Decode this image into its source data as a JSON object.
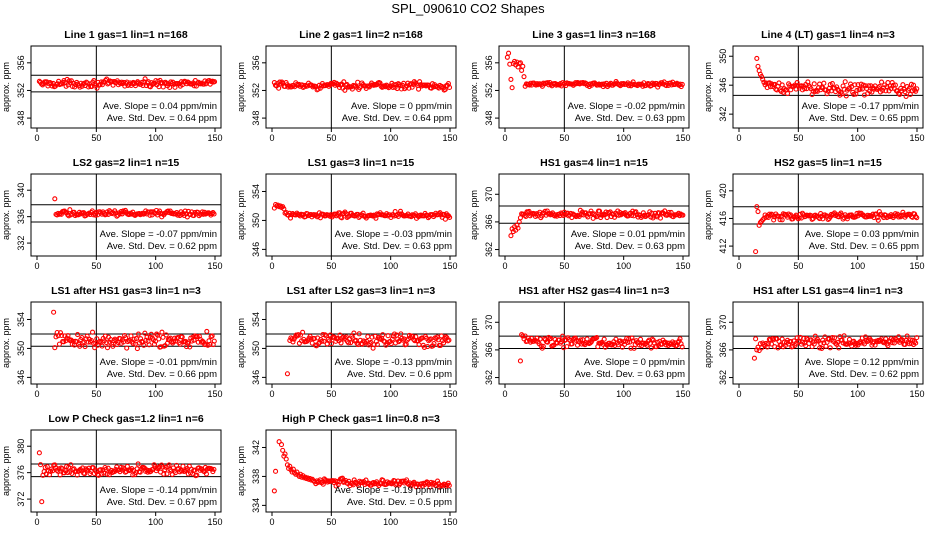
{
  "page_title": "SPL_090610  CO2 Shapes",
  "colors": {
    "points": "#ff0000",
    "axes": "#000000",
    "background": "#ffffff"
  },
  "chart_data": [
    {
      "type": "scatter",
      "title": "Line 1 gas=1 lin=1 n=168",
      "ylabel": "approx. ppm",
      "xlim": [
        0,
        150
      ],
      "ylim": [
        347,
        358
      ],
      "x_ticks": [
        0,
        50,
        100,
        150
      ],
      "y_ticks": [
        348,
        352,
        356
      ],
      "hlines": [
        351.8,
        354.2
      ],
      "vline": 50,
      "annotation": {
        "slope": "Ave. Slope =  0.04  ppm/min",
        "sd": "Ave. Std. Dev. =  0.64  ppm"
      },
      "series": {
        "name": "CO2",
        "start_x": 2,
        "end_x": 150,
        "base_y": 353.0,
        "noise": 0.25,
        "slope_per_x": 0.0,
        "early": []
      }
    },
    {
      "type": "scatter",
      "title": "Line 2 gas=1 lin=2 n=168",
      "ylabel": "approx. ppm",
      "xlim": [
        0,
        150
      ],
      "ylim": [
        347,
        358
      ],
      "x_ticks": [
        0,
        50,
        100,
        150
      ],
      "y_ticks": [
        348,
        352,
        356
      ],
      "hlines": [],
      "vline": 50,
      "annotation": {
        "slope": "Ave. Slope =  0  ppm/min",
        "sd": "Ave. Std. Dev. =  0.64  ppm"
      },
      "series": {
        "name": "CO2",
        "start_x": 2,
        "end_x": 150,
        "base_y": 352.7,
        "noise": 0.25,
        "slope_per_x": 0.0,
        "early": []
      }
    },
    {
      "type": "scatter",
      "title": "Line 3 gas=1 lin=3 n=168",
      "ylabel": "approx. ppm",
      "xlim": [
        0,
        150
      ],
      "ylim": [
        347,
        358
      ],
      "x_ticks": [
        0,
        50,
        100,
        150
      ],
      "y_ticks": [
        348,
        352,
        356
      ],
      "hlines": [],
      "vline": 50,
      "annotation": {
        "slope": "Ave. Slope =  -0.02  ppm/min",
        "sd": "Ave. Std. Dev. =  0.63  ppm"
      },
      "series": {
        "name": "CO2",
        "start_x": 18,
        "end_x": 150,
        "base_y": 352.9,
        "noise": 0.15,
        "slope_per_x": 0.0,
        "early": [
          [
            2,
            356.8
          ],
          [
            3,
            357.4
          ],
          [
            4,
            355.8
          ],
          [
            5,
            353.6
          ],
          [
            6,
            352.4
          ],
          [
            7,
            355.9
          ],
          [
            8,
            356.2
          ],
          [
            9,
            355.7
          ],
          [
            10,
            356.1
          ],
          [
            11,
            355.4
          ],
          [
            12,
            355.9
          ],
          [
            13,
            356.0
          ],
          [
            14,
            354.9
          ],
          [
            15,
            355.5
          ],
          [
            16,
            354.0
          ],
          [
            17,
            352.6
          ]
        ]
      }
    },
    {
      "type": "scatter",
      "title": "Line 4 (LT) gas=1 lin=4 n=3",
      "ylabel": "approx. ppm",
      "xlim": [
        0,
        150
      ],
      "ylim": [
        340.5,
        351
      ],
      "x_ticks": [
        0,
        50,
        100,
        150
      ],
      "y_ticks": [
        342,
        346,
        350
      ],
      "hlines": [
        344.6,
        347.1
      ],
      "vline": 50,
      "annotation": {
        "slope": "Ave. Slope =  -0.17  ppm/min",
        "sd": "Ave. Std. Dev. =  0.65  ppm"
      },
      "series": {
        "name": "CO2",
        "start_x": 22,
        "end_x": 150,
        "base_y": 345.7,
        "noise": 0.45,
        "slope_per_x": -0.002,
        "early": [
          [
            15,
            349.7
          ],
          [
            16,
            348.6
          ],
          [
            17,
            348.0
          ],
          [
            18,
            347.5
          ],
          [
            19,
            347.2
          ],
          [
            20,
            346.8
          ],
          [
            21,
            346.4
          ]
        ]
      }
    },
    {
      "type": "scatter",
      "title": "LS2 gas=2 lin=1 n=15",
      "ylabel": "approx. ppm",
      "xlim": [
        0,
        150
      ],
      "ylim": [
        330.5,
        342
      ],
      "x_ticks": [
        0,
        50,
        100,
        150
      ],
      "y_ticks": [
        332,
        336,
        340
      ],
      "hlines": [
        335.2,
        337.8
      ],
      "vline": 50,
      "annotation": {
        "slope": "Ave. Slope =  -0.07  ppm/min",
        "sd": "Ave. Std. Dev. =  0.62  ppm"
      },
      "series": {
        "name": "CO2",
        "start_x": 16,
        "end_x": 150,
        "base_y": 336.5,
        "noise": 0.22,
        "slope_per_x": 0.0,
        "early": [
          [
            15,
            338.7
          ]
        ]
      }
    },
    {
      "type": "scatter",
      "title": "LS1 gas=3 lin=1 n=15",
      "ylabel": "approx. ppm",
      "xlim": [
        0,
        150
      ],
      "ylim": [
        345.5,
        356
      ],
      "x_ticks": [
        0,
        50,
        100,
        150
      ],
      "y_ticks": [
        346,
        350,
        354
      ],
      "hlines": [],
      "vline": 50,
      "annotation": {
        "slope": "Ave. Slope =  -0.03  ppm/min",
        "sd": "Ave. Std. Dev. =  0.63  ppm"
      },
      "series": {
        "name": "CO2",
        "start_x": 12,
        "end_x": 150,
        "base_y": 350.7,
        "noise": 0.22,
        "slope_per_x": 0.0,
        "early": [
          [
            2,
            351.7
          ],
          [
            3,
            352.2
          ],
          [
            4,
            352.0
          ],
          [
            5,
            352.1
          ],
          [
            6,
            351.9
          ],
          [
            7,
            352.0
          ],
          [
            8,
            351.8
          ],
          [
            9,
            351.9
          ],
          [
            10,
            351.6
          ],
          [
            11,
            351.0
          ]
        ]
      }
    },
    {
      "type": "scatter",
      "title": "HS1 gas=4 lin=1 n=15",
      "ylabel": "approx. ppm",
      "xlim": [
        0,
        150
      ],
      "ylim": [
        361.5,
        372.5
      ],
      "x_ticks": [
        0,
        50,
        100,
        150
      ],
      "y_ticks": [
        362,
        366,
        370
      ],
      "hlines": [
        365.8,
        368.3
      ],
      "vline": 50,
      "annotation": {
        "slope": "Ave. Slope =  0.01  ppm/min",
        "sd": "Ave. Std. Dev. =  0.63  ppm"
      },
      "series": {
        "name": "CO2",
        "start_x": 14,
        "end_x": 150,
        "base_y": 367.1,
        "noise": 0.25,
        "slope_per_x": 0.0,
        "early": [
          [
            5,
            364.0
          ],
          [
            6,
            365.0
          ],
          [
            7,
            364.6
          ],
          [
            8,
            365.3
          ],
          [
            9,
            364.8
          ],
          [
            10,
            365.5
          ],
          [
            11,
            365.1
          ],
          [
            12,
            366.0
          ],
          [
            13,
            366.6
          ]
        ]
      }
    },
    {
      "type": "scatter",
      "title": "HS2 gas=5 lin=1 n=15",
      "ylabel": "approx. ppm",
      "xlim": [
        0,
        150
      ],
      "ylim": [
        411,
        422
      ],
      "x_ticks": [
        0,
        50,
        100,
        150
      ],
      "y_ticks": [
        412,
        416,
        420
      ],
      "hlines": [
        415.2,
        417.7
      ],
      "vline": 50,
      "annotation": {
        "slope": "Ave. Slope =  0.03  ppm/min",
        "sd": "Ave. Std. Dev. =  0.65  ppm"
      },
      "series": {
        "name": "CO2",
        "start_x": 22,
        "end_x": 150,
        "base_y": 416.3,
        "noise": 0.25,
        "slope_per_x": 0.001,
        "early": [
          [
            14,
            411.2
          ],
          [
            15,
            417.7
          ],
          [
            16,
            417.0
          ],
          [
            17,
            415.0
          ],
          [
            18,
            415.4
          ],
          [
            19,
            415.6
          ],
          [
            20,
            415.8
          ],
          [
            21,
            416.0
          ]
        ]
      }
    },
    {
      "type": "scatter",
      "title": "LS1 after HS1 gas=3 lin=1 n=3",
      "ylabel": "approx. ppm",
      "xlim": [
        0,
        150
      ],
      "ylim": [
        345.5,
        356
      ],
      "x_ticks": [
        0,
        50,
        100,
        150
      ],
      "y_ticks": [
        346,
        350,
        354
      ],
      "hlines": [
        350.3,
        352.0
      ],
      "vline": 50,
      "annotation": {
        "slope": "Ave. Slope =  -0.01  ppm/min",
        "sd": "Ave. Std. Dev. =  0.66  ppm"
      },
      "series": {
        "name": "CO2",
        "start_x": 18,
        "end_x": 150,
        "base_y": 351.1,
        "noise": 0.5,
        "slope_per_x": 0.0,
        "early": [
          [
            14,
            355.0
          ],
          [
            15,
            350.1
          ],
          [
            16,
            351.6
          ],
          [
            17,
            352.2
          ]
        ]
      }
    },
    {
      "type": "scatter",
      "title": "LS1 after LS2 gas=3 lin=1 n=3",
      "ylabel": "approx. ppm",
      "xlim": [
        0,
        150
      ],
      "ylim": [
        345.5,
        356
      ],
      "x_ticks": [
        0,
        50,
        100,
        150
      ],
      "y_ticks": [
        346,
        350,
        354
      ],
      "hlines": [
        350.3,
        352.0
      ],
      "vline": 50,
      "annotation": {
        "slope": "Ave. Slope =  -0.13  ppm/min",
        "sd": "Ave. Std. Dev. =  0.6  ppm"
      },
      "series": {
        "name": "CO2",
        "start_x": 15,
        "end_x": 150,
        "base_y": 351.2,
        "noise": 0.5,
        "slope_per_x": 0.0,
        "early": [
          [
            13,
            346.5
          ]
        ]
      }
    },
    {
      "type": "scatter",
      "title": "HS1 after HS2 gas=4 lin=1 n=3",
      "ylabel": "approx. ppm",
      "xlim": [
        0,
        150
      ],
      "ylim": [
        361.5,
        372.5
      ],
      "x_ticks": [
        0,
        50,
        100,
        150
      ],
      "y_ticks": [
        362,
        366,
        370
      ],
      "hlines": [
        366.2,
        368.0
      ],
      "vline": 50,
      "annotation": {
        "slope": "Ave. Slope =  0  ppm/min",
        "sd": "Ave. Std. Dev. =  0.63  ppm"
      },
      "series": {
        "name": "CO2",
        "start_x": 17,
        "end_x": 150,
        "base_y": 367.2,
        "noise": 0.35,
        "slope_per_x": -0.002,
        "early": [
          [
            13,
            364.4
          ],
          [
            14,
            368.2
          ],
          [
            15,
            368.0
          ],
          [
            16,
            367.6
          ]
        ]
      }
    },
    {
      "type": "scatter",
      "title": "HS1 after LS1 gas=4 lin=1 n=3",
      "ylabel": "approx. ppm",
      "xlim": [
        0,
        150
      ],
      "ylim": [
        361.5,
        372.5
      ],
      "x_ticks": [
        0,
        50,
        100,
        150
      ],
      "y_ticks": [
        362,
        366,
        370
      ],
      "hlines": [
        366.2,
        368.0
      ],
      "vline": 50,
      "annotation": {
        "slope": "Ave. Slope =  0.12  ppm/min",
        "sd": "Ave. Std. Dev. =  0.62  ppm"
      },
      "series": {
        "name": "CO2",
        "start_x": 22,
        "end_x": 150,
        "base_y": 367.1,
        "noise": 0.4,
        "slope_per_x": 0.001,
        "early": [
          [
            13,
            364.8
          ],
          [
            14,
            367.6
          ],
          [
            15,
            366.0
          ],
          [
            16,
            366.4
          ],
          [
            17,
            365.9
          ],
          [
            18,
            366.9
          ],
          [
            19,
            366.3
          ],
          [
            20,
            367.0
          ],
          [
            21,
            366.8
          ]
        ]
      }
    },
    {
      "type": "scatter",
      "title": "Low P Check gas=1.2 lin=1 n=6",
      "ylabel": "approx. ppm",
      "xlim": [
        0,
        150
      ],
      "ylim": [
        370.5,
        382
      ],
      "x_ticks": [
        0,
        50,
        100,
        150
      ],
      "y_ticks": [
        372,
        376,
        380
      ],
      "hlines": [
        375.4,
        377.3
      ],
      "vline": 50,
      "annotation": {
        "slope": "Ave. Slope =  -0.14  ppm/min",
        "sd": "Ave. Std. Dev. =  0.67  ppm"
      },
      "series": {
        "name": "CO2",
        "start_x": 6,
        "end_x": 150,
        "base_y": 376.4,
        "noise": 0.35,
        "slope_per_x": 0.0,
        "early": [
          [
            2,
            379.0
          ],
          [
            3,
            377.2
          ],
          [
            4,
            371.6
          ],
          [
            5,
            375.6
          ]
        ]
      }
    },
    {
      "type": "scatter",
      "title": "High P Check gas=1 lin=0.8 n=3",
      "ylabel": "approx. ppm",
      "xlim": [
        0,
        150
      ],
      "ylim": [
        333.5,
        344
      ],
      "x_ticks": [
        0,
        50,
        100,
        150
      ],
      "y_ticks": [
        334,
        338,
        342
      ],
      "hlines": [],
      "vline": 50,
      "annotation": {
        "slope": "Ave. Slope =  -0.19  ppm/min",
        "sd": "Ave. Std. Dev. =  0.5  ppm"
      },
      "series": {
        "name": "CO2",
        "start_x": 36,
        "end_x": 150,
        "base_y": 337.3,
        "noise": 0.22,
        "slope_per_x": -0.004,
        "early": [
          [
            2,
            336.0
          ],
          [
            3,
            338.7
          ],
          [
            6,
            342.8
          ],
          [
            8,
            342.4
          ],
          [
            9,
            341.6
          ],
          [
            10,
            340.8
          ],
          [
            11,
            341.1
          ],
          [
            12,
            340.4
          ],
          [
            13,
            339.6
          ],
          [
            14,
            339.1
          ],
          [
            15,
            339.4
          ],
          [
            16,
            338.9
          ],
          [
            17,
            338.6
          ],
          [
            18,
            339.0
          ],
          [
            19,
            338.5
          ],
          [
            20,
            338.3
          ],
          [
            21,
            338.6
          ],
          [
            22,
            338.2
          ],
          [
            23,
            338.0
          ],
          [
            24,
            338.3
          ],
          [
            25,
            337.9
          ],
          [
            26,
            338.1
          ],
          [
            27,
            337.8
          ],
          [
            28,
            337.9
          ],
          [
            29,
            337.7
          ],
          [
            30,
            337.8
          ],
          [
            31,
            337.6
          ],
          [
            32,
            337.7
          ],
          [
            33,
            337.5
          ],
          [
            34,
            337.6
          ],
          [
            35,
            337.4
          ]
        ]
      }
    }
  ]
}
